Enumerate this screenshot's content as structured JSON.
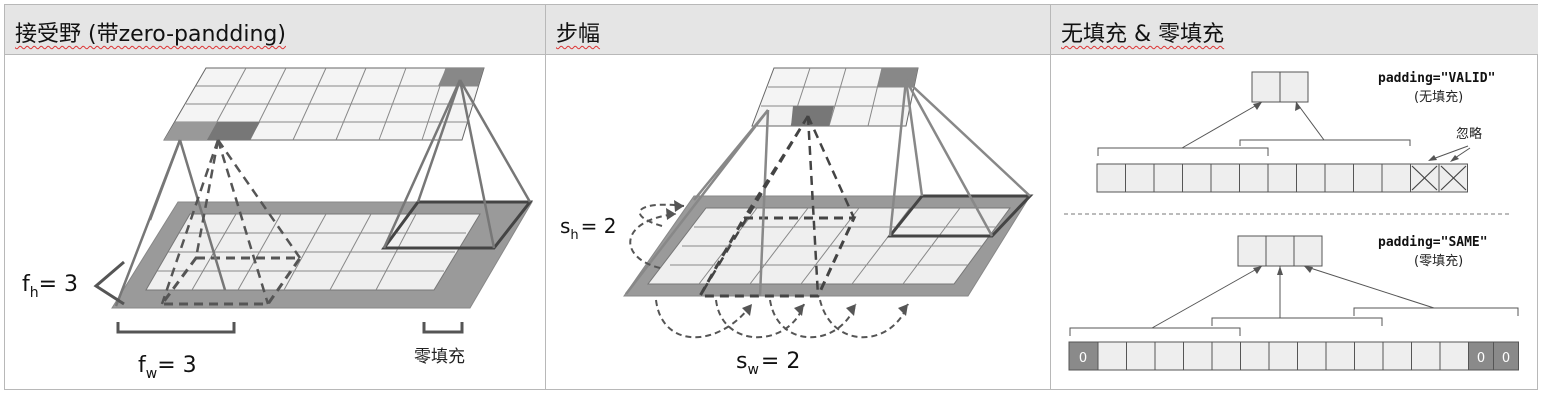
{
  "panels": [
    {
      "title": "接受野 (带zero-pandding)"
    },
    {
      "title": "步幅"
    },
    {
      "title": "无填充 & 零填充"
    }
  ],
  "panel1": {
    "fh_label": "f",
    "fh_sub": "h",
    "fh_value": "= 3",
    "fw_label": "f",
    "fw_sub": "w",
    "fw_value": "= 3",
    "zero_padding_label": "零填充"
  },
  "panel2": {
    "sh_label": "s",
    "sh_sub": "h",
    "sh_value": "= 2",
    "sw_label": "s",
    "sw_sub": "w",
    "sw_value": "= 2"
  },
  "panel3": {
    "valid_code": "padding=\"VALID\"",
    "valid_caption": "(无填充)",
    "ignore_label": "忽略",
    "same_code": "padding=\"SAME\"",
    "same_caption": "(零填充)",
    "pad_cells": [
      "0",
      "0",
      "0"
    ]
  }
}
